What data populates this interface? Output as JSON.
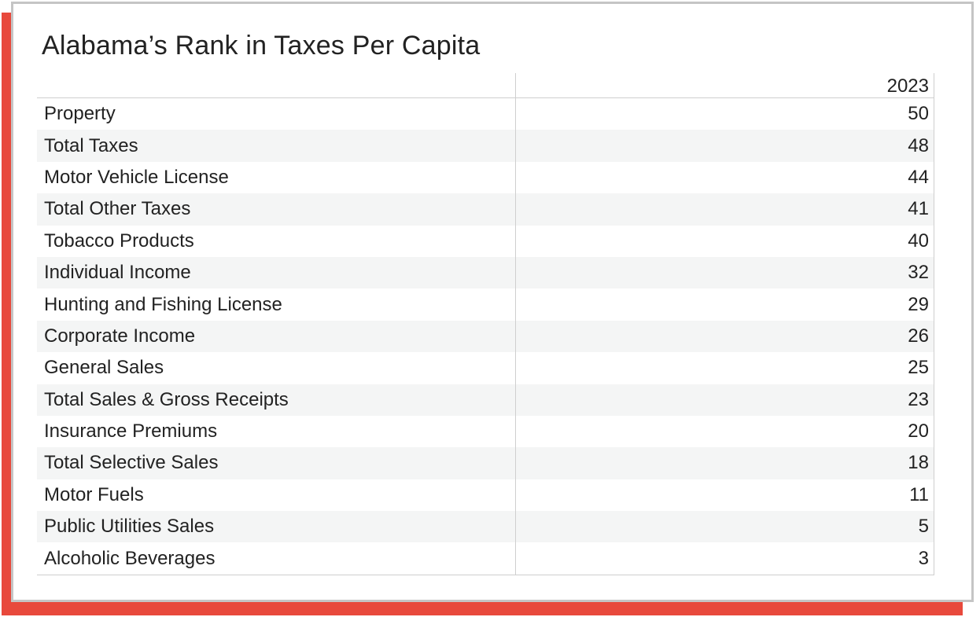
{
  "title": "Alabama’s Rank in Taxes Per Capita",
  "colors": {
    "accent_frame": "#e8493c",
    "row_shade": "#f4f5f5",
    "text": "#222222"
  },
  "chart_data": {
    "type": "table",
    "title": "Alabama’s Rank in Taxes Per Capita",
    "columns": [
      "",
      "2023"
    ],
    "rows": [
      {
        "label": "Property",
        "value": 50
      },
      {
        "label": "Total Taxes",
        "value": 48
      },
      {
        "label": "Motor Vehicle License",
        "value": 44
      },
      {
        "label": "Total Other Taxes",
        "value": 41
      },
      {
        "label": "Tobacco Products",
        "value": 40
      },
      {
        "label": "Individual Income",
        "value": 32
      },
      {
        "label": "Hunting and Fishing License",
        "value": 29
      },
      {
        "label": "Corporate Income",
        "value": 26
      },
      {
        "label": "General Sales",
        "value": 25
      },
      {
        "label": "Total Sales & Gross Receipts",
        "value": 23
      },
      {
        "label": "Insurance Premiums",
        "value": 20
      },
      {
        "label": "Total Selective Sales",
        "value": 18
      },
      {
        "label": "Motor Fuels",
        "value": 11
      },
      {
        "label": "Public Utilities Sales",
        "value": 5
      },
      {
        "label": "Alcoholic Beverages",
        "value": 3
      }
    ]
  }
}
